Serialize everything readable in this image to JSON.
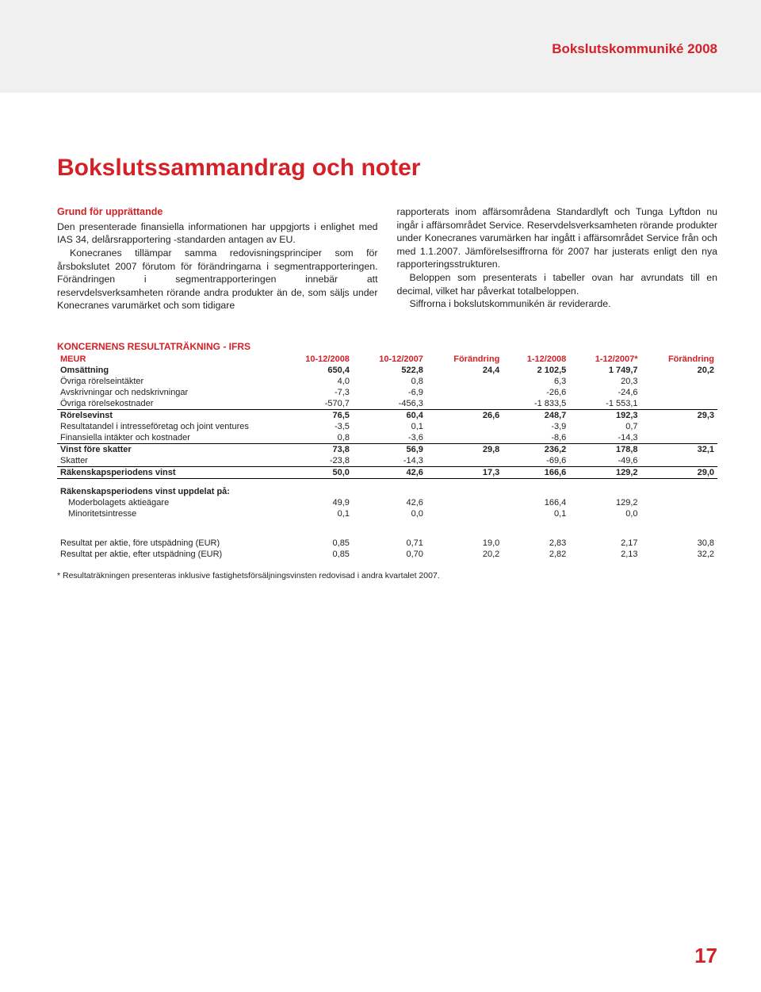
{
  "header": {
    "title": "Bokslutskommuniké 2008"
  },
  "main_title": "Bokslutssammandrag och noter",
  "body": {
    "sub_heading": "Grund för upprättande",
    "p1": "Den presenterade finansiella informationen har uppgjorts i enlighet med IAS 34, delårsrapportering -standarden antagen av EU.",
    "p2": "Konecranes tillämpar samma redovisningsprinciper som för årsbokslutet 2007 förutom för förändringarna i segmentrapporteringen. Förändringen i segmentrapporteringen innebär att reservdelsverksamheten rörande andra produkter än de, som säljs under Konecranes varumärket och som tidigare",
    "p3": "rapporterats inom affärsområdena Standardlyft och Tunga Lyftdon nu ingår i affärsområdet Service. Reservdelsverksamheten rörande produkter under Konecranes varumärken har ingått i affärsområdet Service från och med 1.1.2007. Jämförelsesiffrorna för 2007 har justerats enligt den nya rapporteringsstrukturen.",
    "p4": "Beloppen som presenterats i tabeller ovan har avrundats till en decimal, vilket har påverkat totalbeloppen.",
    "p5": "Siffrorna i bokslutskommunikén är reviderarde."
  },
  "table": {
    "title": "KONCERNENS RESULTATRÄKNING - IFRS",
    "columns": [
      "MEUR",
      "10-12/2008",
      "10-12/2007",
      "Förändring",
      "1-12/2008",
      "1-12/2007*",
      "Förändring"
    ],
    "rows": [
      {
        "label": "Omsättning",
        "v": [
          "650,4",
          "522,8",
          "24,4",
          "2 102,5",
          "1 749,7",
          "20,2"
        ],
        "bold": true
      },
      {
        "label": "Övriga rörelseintäkter",
        "v": [
          "4,0",
          "0,8",
          "",
          "6,3",
          "20,3",
          ""
        ]
      },
      {
        "label": "Avskrivningar och nedskrivningar",
        "v": [
          "-7,3",
          "-6,9",
          "",
          "-26,6",
          "-24,6",
          ""
        ]
      },
      {
        "label": "Övriga rörelsekostnader",
        "v": [
          "-570,7",
          "-456,3",
          "",
          "-1 833,5",
          "-1 553,1",
          ""
        ],
        "underline": true
      },
      {
        "label": "Rörelsevinst",
        "v": [
          "76,5",
          "60,4",
          "26,6",
          "248,7",
          "192,3",
          "29,3"
        ],
        "bold": true
      },
      {
        "label": "Resultatandel i intresseföretag och joint ventures",
        "v": [
          "-3,5",
          "0,1",
          "",
          "-3,9",
          "0,7",
          ""
        ]
      },
      {
        "label": "Finansiella intäkter och kostnader",
        "v": [
          "0,8",
          "-3,6",
          "",
          "-8,6",
          "-14,3",
          ""
        ],
        "underline": true
      },
      {
        "label": "Vinst före skatter",
        "v": [
          "73,8",
          "56,9",
          "29,8",
          "236,2",
          "178,8",
          "32,1"
        ],
        "bold": true
      },
      {
        "label": "Skatter",
        "v": [
          "-23,8",
          "-14,3",
          "",
          "-69,6",
          "-49,6",
          ""
        ],
        "underline": true
      },
      {
        "label": "Räkenskapsperiodens vinst",
        "v": [
          "50,0",
          "42,6",
          "17,3",
          "166,6",
          "129,2",
          "29,0"
        ],
        "bold": true,
        "underline": true
      }
    ],
    "section2_label": "Räkenskapsperiodens vinst uppdelat på:",
    "section2_rows": [
      {
        "label": "Moderbolagets aktieägare",
        "v": [
          "49,9",
          "42,6",
          "",
          "166,4",
          "129,2",
          ""
        ],
        "indent": true
      },
      {
        "label": "Minoritetsintresse",
        "v": [
          "0,1",
          "0,0",
          "",
          "0,1",
          "0,0",
          ""
        ],
        "indent": true
      }
    ],
    "section3_rows": [
      {
        "label": "Resultat per aktie, före utspädning (EUR)",
        "v": [
          "0,85",
          "0,71",
          "19,0",
          "2,83",
          "2,17",
          "30,8"
        ]
      },
      {
        "label": "Resultat per aktie, efter utspädning (EUR)",
        "v": [
          "0,85",
          "0,70",
          "20,2",
          "2,82",
          "2,13",
          "32,2"
        ]
      }
    ],
    "footnote": "* Resultaträkningen presenteras inklusive fastighetsförsäljningsvinsten redovisad i andra kvartalet 2007."
  },
  "page_number": "17",
  "colors": {
    "accent": "#d42127",
    "text": "#222222",
    "page_bg": "#ffffff",
    "stripe_bg": "#f0f0f0"
  }
}
